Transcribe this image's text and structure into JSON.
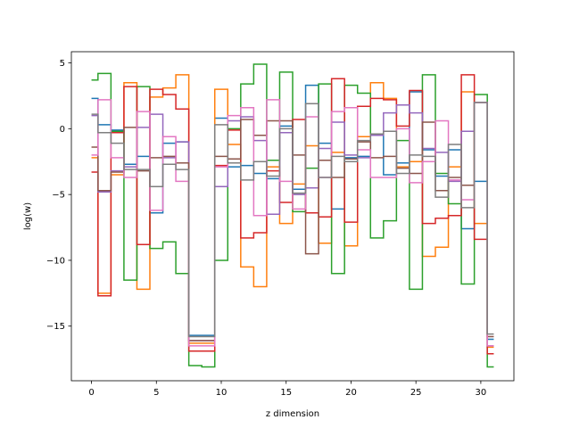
{
  "chart_data": {
    "type": "line",
    "drawstyle": "steps-mid",
    "xlabel": "z dimension",
    "ylabel": "log(w)",
    "xlim": [
      -1.55,
      32.55
    ],
    "ylim": [
      -19.15,
      5.85
    ],
    "xticks": [
      0,
      5,
      10,
      15,
      20,
      25,
      30
    ],
    "xtick_labels": [
      "0",
      "5",
      "10",
      "15",
      "20",
      "25",
      "30"
    ],
    "yticks": [
      5,
      0,
      -5,
      -10,
      -15
    ],
    "ytick_labels": [
      "5",
      "0",
      "−5",
      "−10",
      "−15"
    ],
    "grid": false,
    "legend": false,
    "x": [
      0,
      1,
      2,
      3,
      4,
      5,
      6,
      7,
      8,
      9,
      10,
      11,
      12,
      13,
      14,
      15,
      16,
      17,
      18,
      19,
      20,
      21,
      22,
      23,
      24,
      25,
      26,
      27,
      28,
      29,
      30,
      31
    ],
    "series": [
      {
        "color": "#1f77b4",
        "values": [
          2.3,
          0.3,
          -0.1,
          -2.7,
          -2.1,
          -6.4,
          -1.1,
          -1.0,
          -15.7,
          -15.7,
          0.8,
          -2.9,
          -2.8,
          -3.4,
          -3.8,
          0.2,
          -4.6,
          3.3,
          -1.1,
          -6.1,
          -2.2,
          -2.1,
          -0.5,
          -3.5,
          -2.6,
          2.8,
          -1.6,
          -3.6,
          -1.6,
          -7.6,
          -4.0,
          -16.0
        ]
      },
      {
        "color": "#ff7f0e",
        "values": [
          -2.2,
          -12.5,
          -3.5,
          3.5,
          -12.2,
          2.4,
          3.1,
          4.1,
          -16.3,
          -16.3,
          3.0,
          -1.2,
          -10.5,
          -12.0,
          -2.9,
          -7.2,
          -4.2,
          -1.3,
          -8.7,
          -1.8,
          -8.9,
          -0.6,
          3.5,
          2.3,
          -2.9,
          -2.5,
          -9.7,
          -9.0,
          -2.9,
          2.8,
          -7.2,
          -16.6
        ]
      },
      {
        "color": "#2ca02c",
        "values": [
          3.7,
          4.2,
          -0.2,
          -11.5,
          3.2,
          -9.1,
          -8.6,
          -11.0,
          -18.0,
          -18.1,
          -10.0,
          0.0,
          3.4,
          4.9,
          -2.4,
          4.3,
          -6.3,
          -3.0,
          3.4,
          -11.0,
          3.3,
          2.7,
          -8.3,
          -7.0,
          -0.9,
          -12.2,
          4.1,
          -3.4,
          -5.7,
          -11.8,
          2.6,
          -18.1
        ]
      },
      {
        "color": "#d62728",
        "values": [
          -3.3,
          -12.7,
          -0.3,
          3.2,
          -8.8,
          3.0,
          2.6,
          1.5,
          -16.9,
          -16.9,
          -2.8,
          -0.1,
          -8.3,
          -7.9,
          -3.2,
          -5.6,
          0.7,
          -6.4,
          -6.7,
          3.8,
          -7.1,
          1.7,
          2.3,
          2.2,
          0.2,
          2.9,
          -7.2,
          -6.8,
          -6.6,
          4.1,
          -8.4,
          -17.1
        ]
      },
      {
        "color": "#9467bd",
        "values": [
          1.0,
          -4.8,
          -3.2,
          -2.9,
          0.1,
          1.1,
          -2.2,
          -1.0,
          -16.1,
          -16.1,
          -4.4,
          0.6,
          0.9,
          -0.9,
          -6.5,
          -0.3,
          -5.0,
          -4.5,
          -1.5,
          0.5,
          -2.0,
          -2.2,
          -0.5,
          1.2,
          1.8,
          1.2,
          -1.5,
          -1.8,
          -4.0,
          -0.2,
          2.0,
          -16.5
        ]
      },
      {
        "color": "#8c564b",
        "values": [
          -1.4,
          -4.7,
          -3.3,
          0.1,
          -3.2,
          -2.2,
          -2.1,
          -2.6,
          -16.1,
          -16.1,
          -2.1,
          -2.3,
          0.7,
          -0.5,
          0.6,
          0.6,
          -2.0,
          -9.5,
          -2.4,
          -3.7,
          -2.3,
          -1.0,
          -2.2,
          -2.1,
          -3.0,
          -3.4,
          0.5,
          -4.7,
          -3.7,
          -4.3,
          2.0,
          -15.8
        ]
      },
      {
        "color": "#e377c2",
        "values": [
          -2.0,
          2.2,
          -2.2,
          -3.7,
          1.3,
          -6.2,
          -0.6,
          -4.0,
          -16.5,
          -16.5,
          -2.9,
          1.0,
          1.6,
          -6.6,
          2.2,
          -4.0,
          -6.1,
          0.9,
          -3.7,
          1.3,
          1.6,
          -1.6,
          -3.7,
          -3.7,
          0.0,
          -4.1,
          -2.5,
          0.6,
          -3.9,
          -5.4,
          2.0,
          -16.5
        ]
      },
      {
        "color": "#7f7f7f",
        "values": [
          1.1,
          -0.3,
          -1.1,
          -3.1,
          -3.1,
          -4.4,
          -2.7,
          -3.1,
          -15.8,
          -15.8,
          0.3,
          -2.6,
          -3.9,
          -2.5,
          -3.6,
          0.0,
          -4.9,
          1.9,
          -3.7,
          -2.1,
          -2.5,
          -0.9,
          -0.4,
          -0.2,
          -3.4,
          -2.0,
          -2.1,
          -5.2,
          -1.2,
          -6.0,
          2.0,
          -15.6
        ]
      }
    ]
  }
}
